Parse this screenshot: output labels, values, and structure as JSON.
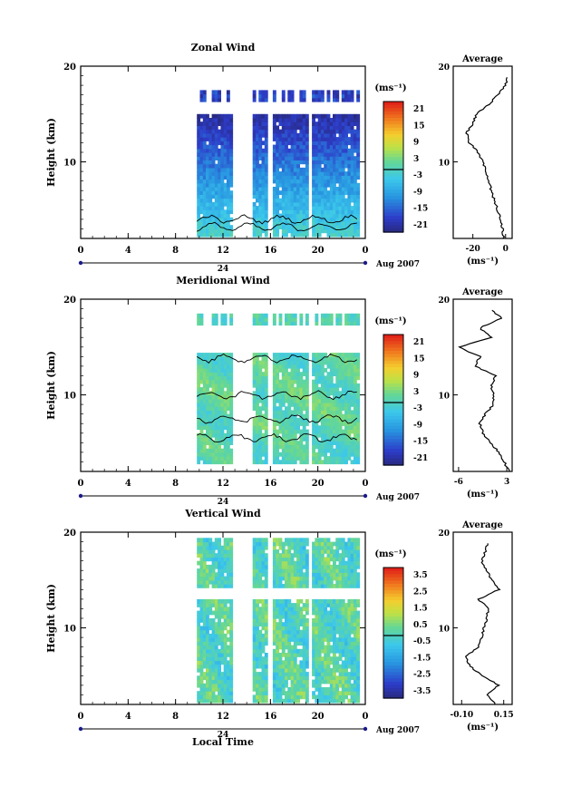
{
  "xlabel_bottom": "Local Time",
  "date_label": "Aug 2007",
  "day_label": "24",
  "average_title": "Average",
  "unit_label": "(ms⁻¹)",
  "ylabel": "Height (km)",
  "colors": {
    "data_low": "#2e3a8c",
    "data_mid": "#3bc6e6",
    "data_high": "#e83020",
    "frame": "#000000",
    "axis_accent": "#1a1a8c"
  },
  "chart_data": [
    {
      "type": "heatmap",
      "title": "Zonal Wind",
      "x_ticks": [
        "0",
        "4",
        "8",
        "12",
        "16",
        "20",
        "0"
      ],
      "x_range": [
        0,
        24
      ],
      "y_ticks": [
        "20",
        "10"
      ],
      "y_range": [
        2,
        20
      ],
      "colorbar": {
        "ticks": [
          "21",
          "15",
          "9",
          "3",
          "-3",
          "-9",
          "-15",
          "-21"
        ],
        "range": [
          -24,
          24
        ],
        "unit": "(ms⁻¹)"
      },
      "data_columns_hours": [
        [
          9.8,
          12.8
        ],
        [
          14.5,
          15.7
        ],
        [
          16.2,
          19.0
        ],
        [
          19.5,
          23.5
        ]
      ],
      "profile": {
        "title": "Average",
        "x_ticks": [
          "-20",
          "0"
        ],
        "x_range": [
          -32,
          4
        ],
        "heights_km": [
          2,
          3,
          4,
          5,
          6,
          7,
          8,
          9,
          10,
          11,
          12,
          13,
          14,
          15,
          16,
          17,
          18,
          19
        ],
        "values": [
          -1,
          -2,
          -3,
          -5,
          -7,
          -9,
          -10,
          -12,
          -14,
          -17,
          -22,
          -24,
          -20,
          -18,
          -10,
          -5,
          0,
          1
        ]
      }
    },
    {
      "type": "heatmap",
      "title": "Meridional Wind",
      "x_ticks": [
        "0",
        "4",
        "8",
        "12",
        "16",
        "20",
        "0"
      ],
      "x_range": [
        0,
        24
      ],
      "y_ticks": [
        "20",
        "10"
      ],
      "y_range": [
        2,
        20
      ],
      "colorbar": {
        "ticks": [
          "21",
          "15",
          "9",
          "3",
          "-3",
          "-9",
          "-15",
          "-21"
        ],
        "range": [
          -24,
          24
        ],
        "unit": "(ms⁻¹)"
      },
      "data_columns_hours": [
        [
          9.8,
          12.8
        ],
        [
          14.5,
          15.7
        ],
        [
          16.2,
          19.0
        ],
        [
          19.5,
          23.5
        ]
      ],
      "profile": {
        "title": "Average",
        "x_ticks": [
          "-6",
          "3"
        ],
        "x_range": [
          -7,
          4
        ],
        "heights_km": [
          2,
          3,
          4,
          5,
          6,
          7,
          8,
          9,
          10,
          11,
          12,
          13,
          14,
          15,
          16,
          17,
          18,
          19
        ],
        "values": [
          3.5,
          2.5,
          1.5,
          0,
          -1.5,
          -2,
          -1,
          0.5,
          0.5,
          0,
          1,
          -3,
          -2,
          -6,
          0,
          -2,
          2,
          0
        ]
      }
    },
    {
      "type": "heatmap",
      "title": "Vertical Wind",
      "x_ticks": [
        "0",
        "4",
        "8",
        "12",
        "16",
        "20",
        "0"
      ],
      "x_range": [
        0,
        24
      ],
      "y_ticks": [
        "20",
        "10"
      ],
      "y_range": [
        2,
        20
      ],
      "colorbar": {
        "ticks": [
          "3.5",
          "2.5",
          "1.5",
          "0.5",
          "-0.5",
          "-1.5",
          "-2.5",
          "-3.5"
        ],
        "range": [
          -4,
          4
        ],
        "unit": "(ms⁻¹)"
      },
      "data_columns_hours": [
        [
          9.8,
          12.8
        ],
        [
          14.5,
          15.7
        ],
        [
          16.2,
          19.0
        ],
        [
          19.5,
          23.5
        ]
      ],
      "profile": {
        "title": "Average",
        "x_ticks": [
          "-0.10",
          "0.15"
        ],
        "x_range": [
          -0.15,
          0.2
        ],
        "heights_km": [
          2,
          3,
          4,
          5,
          6,
          7,
          8,
          9,
          10,
          11,
          12,
          13,
          14,
          15,
          16,
          17,
          18,
          19
        ],
        "values": [
          0.1,
          0.05,
          0.12,
          0.02,
          -0.05,
          -0.08,
          0.0,
          0.02,
          0.03,
          0.05,
          0.06,
          0.0,
          0.12,
          0.08,
          0.05,
          0.02,
          0.04,
          0.06
        ]
      }
    }
  ]
}
